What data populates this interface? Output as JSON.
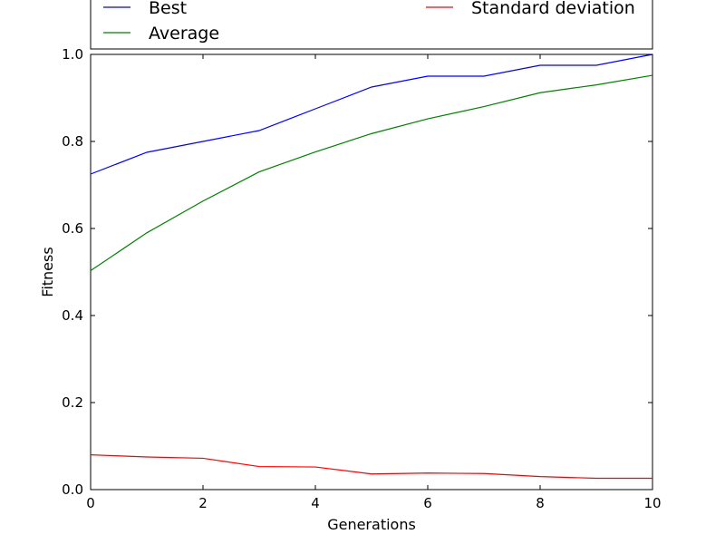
{
  "chart_data": {
    "type": "line",
    "xlabel": "Generations",
    "ylabel": "Fitness",
    "xlim": [
      0,
      10
    ],
    "ylim": [
      0,
      1.0
    ],
    "x_ticks": [
      "0",
      "2",
      "4",
      "6",
      "8",
      "10"
    ],
    "y_ticks": [
      "0.0",
      "0.2",
      "0.4",
      "0.6",
      "0.8",
      "1.0"
    ],
    "grid": false,
    "legend_placement": "top (outside plot, 2 columns)",
    "x": [
      0,
      1,
      2,
      3,
      4,
      5,
      6,
      7,
      8,
      9,
      10
    ],
    "series": [
      {
        "name": "Best",
        "color": "#0000ff",
        "values": [
          0.725,
          0.775,
          0.8,
          0.825,
          0.875,
          0.925,
          0.95,
          0.95,
          0.975,
          0.975,
          1.0
        ]
      },
      {
        "name": "Average",
        "color": "#008000",
        "values": [
          0.503,
          0.59,
          0.663,
          0.73,
          0.776,
          0.818,
          0.852,
          0.88,
          0.912,
          0.93,
          0.952
        ]
      },
      {
        "name": "Standard deviation",
        "color": "#ff0000",
        "values": [
          0.08,
          0.075,
          0.072,
          0.053,
          0.052,
          0.036,
          0.038,
          0.037,
          0.03,
          0.026,
          0.026
        ]
      }
    ]
  }
}
